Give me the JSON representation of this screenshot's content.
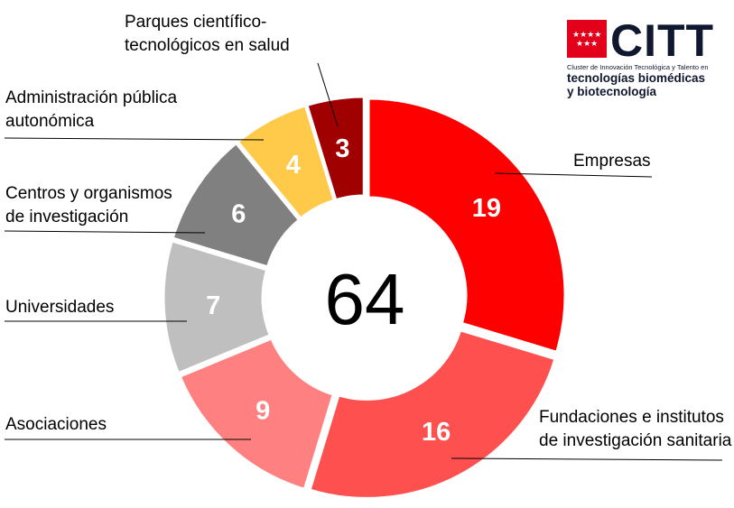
{
  "chart_data": {
    "type": "pie",
    "subtype": "donut",
    "total_label": "64",
    "categories": [
      "Empresas",
      "Fundaciones e institutos de investigación sanitaria",
      "Asociaciones",
      "Universidades",
      "Centros y organismos de investigación",
      "Administración pública autonómica",
      "Parques científico-tecnológicos en salud"
    ],
    "label_lines": [
      [
        "Empresas"
      ],
      [
        "Fundaciones e institutos",
        "de investigación sanitaria"
      ],
      [
        "Asociaciones"
      ],
      [
        "Universidades"
      ],
      [
        "Centros y organismos",
        "de investigación"
      ],
      [
        "Administración pública",
        "autonómica"
      ],
      [
        "Parques científico-",
        "tecnológicos en salud"
      ]
    ],
    "values": [
      19,
      16,
      9,
      7,
      6,
      4,
      3
    ],
    "colors": [
      "#ff0000",
      "#ff5050",
      "#ff8080",
      "#bfbfbf",
      "#808080",
      "#ffc94a",
      "#a00000"
    ],
    "data_label_color": "#ffffff",
    "legend": "none"
  },
  "logo": {
    "name": "CITT",
    "line1": "Cluster de Innovación Tecnológica y Talento en",
    "line2": "tecnologías biomédicas",
    "line3": "y biotecnología"
  }
}
